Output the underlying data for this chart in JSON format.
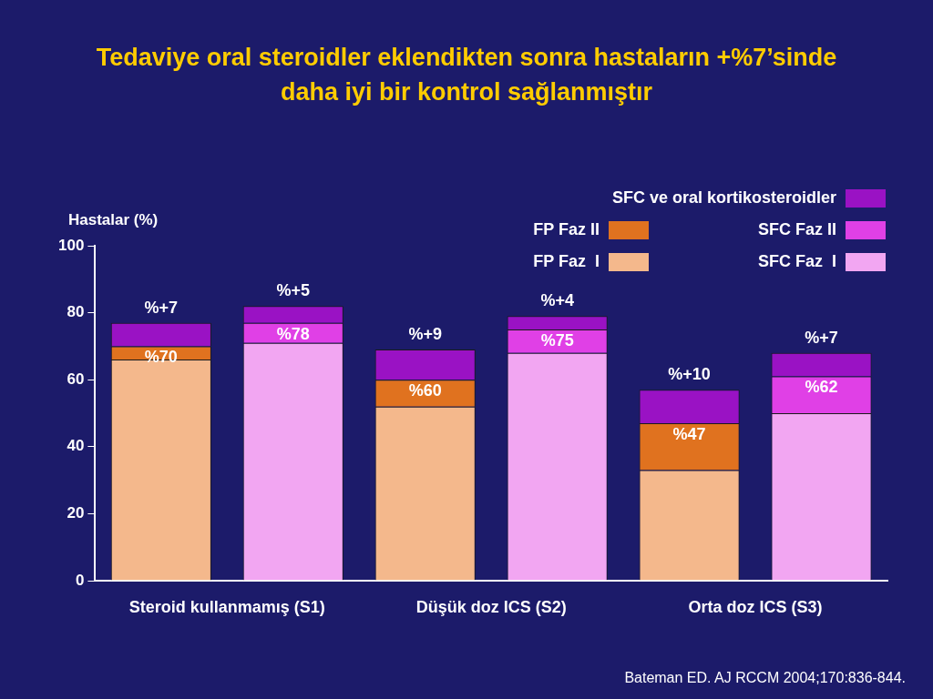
{
  "chart_data": {
    "type": "bar",
    "title": "Tedaviye oral steroidler eklendikten sonra hastaların +%7’sinde daha iyi bir kontrol sağlanmıştır",
    "ylabel": "Hastalar (%)",
    "categories": [
      "Steroid kullanmamış (S1)",
      null,
      "Düşük doz ICS (S2)",
      null,
      "Orta doz ICS (S3)",
      null
    ],
    "stacked": true,
    "ylim": [
      0,
      100
    ],
    "yticks": [
      0,
      20,
      40,
      60,
      80,
      100
    ],
    "legend": "top right",
    "grid": false,
    "series": [
      {
        "name": "FP Faz  I",
        "color": "#f4b88c",
        "values": [
          66,
          null,
          52,
          null,
          33,
          null
        ]
      },
      {
        "name": "SFC Faz  I",
        "color": "#f2a6f2",
        "values": [
          null,
          71,
          null,
          68,
          null,
          50
        ]
      },
      {
        "name": "FP Faz II",
        "color": "#e0721f",
        "values": [
          4,
          null,
          8,
          null,
          14,
          null
        ]
      },
      {
        "name": "SFC Faz II",
        "color": "#e040e6",
        "values": [
          null,
          6,
          null,
          7,
          null,
          11
        ]
      },
      {
        "name": "SFC ve oral kortikosteroidler",
        "color": "#9a12c4",
        "values": [
          7,
          5,
          9,
          4,
          10,
          7
        ],
        "value_labels": [
          "%+7",
          "%+5",
          "%+9",
          "%+4",
          "%+10",
          "%+7"
        ]
      }
    ],
    "annotations": [
      "%70",
      "%78",
      "%60",
      "%75",
      "%47",
      "%62",
      "Bateman ED. AJ RCCM 2004;170:836-844."
    ]
  }
}
